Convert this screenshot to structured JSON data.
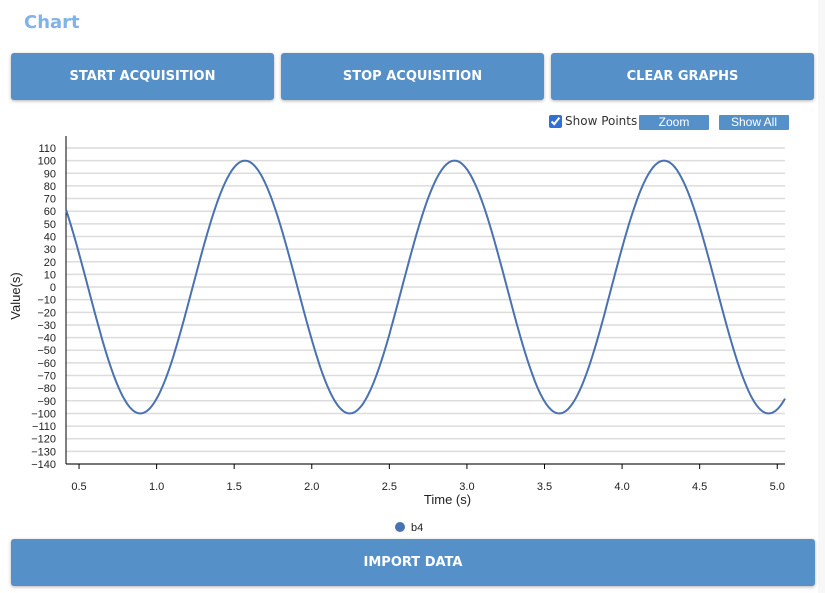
{
  "title": "Chart",
  "buttons": {
    "start": "START ACQUISITION",
    "stop": "STOP ACQUISITION",
    "clear": "CLEAR GRAPHS",
    "import": "IMPORT DATA"
  },
  "controls": {
    "show_points_label": "Show Points",
    "show_points_checked": true,
    "zoom_label": "Zoom",
    "show_all_label": "Show All"
  },
  "colors": {
    "accent": "#5590c9",
    "series": "#4a72b0",
    "title": "#7fb3ea"
  },
  "chart_data": {
    "type": "line",
    "title": "",
    "xlabel": "Time (s)",
    "ylabel": "Value(s)",
    "xlim": [
      0.416,
      5.05
    ],
    "ylim": [
      -140,
      110
    ],
    "x_ticks": [
      "0.5",
      "1.0",
      "1.5",
      "2.0",
      "2.5",
      "3.0",
      "3.5",
      "4.0",
      "4.5",
      "5.0"
    ],
    "y_ticks": [
      "110",
      "100",
      "90",
      "80",
      "70",
      "60",
      "50",
      "40",
      "30",
      "20",
      "10",
      "0",
      "-10",
      "-20",
      "-30",
      "-40",
      "-50",
      "-60",
      "-70",
      "-80",
      "-90",
      "-100",
      "-110",
      "-120",
      "-130",
      "-140"
    ],
    "grid": true,
    "legend": {
      "position": "bottom",
      "entries": [
        "b4"
      ]
    },
    "series": [
      {
        "name": "b4",
        "description": "sinusoid, amplitude 100, period ~1.35 s",
        "amplitude": 100,
        "period": 1.35,
        "peaks_t": [
          1.57,
          2.92,
          4.26
        ],
        "troughs_t": [
          0.88,
          2.23,
          3.58,
          4.93
        ],
        "start": {
          "t": 0.416,
          "value": 58
        },
        "end": {
          "t": 5.05,
          "value": -84
        }
      }
    ]
  }
}
